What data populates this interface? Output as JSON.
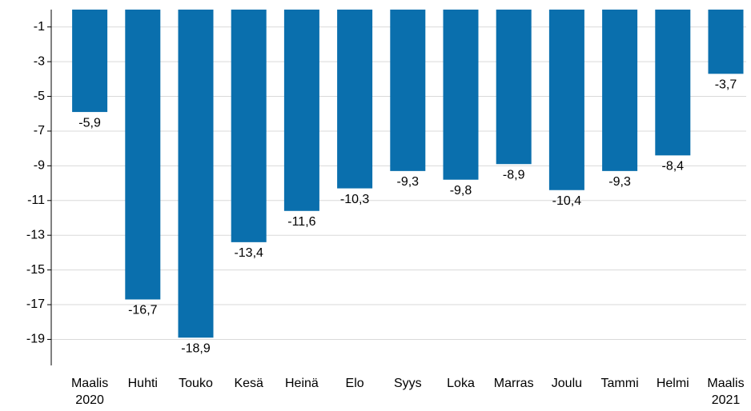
{
  "chart_data": {
    "type": "bar",
    "categories": [
      "Maalis 2020",
      "Huhti",
      "Touko",
      "Kesä",
      "Heinä",
      "Elo",
      "Syys",
      "Loka",
      "Marras",
      "Joulu",
      "Tammi",
      "Helmi",
      "Maalis 2021"
    ],
    "values": [
      -5.9,
      -16.7,
      -18.9,
      -13.4,
      -11.6,
      -10.3,
      -9.3,
      -9.8,
      -8.9,
      -10.4,
      -9.3,
      -8.4,
      -3.7
    ],
    "value_labels": [
      "-5,9",
      "-16,7",
      "-18,9",
      "-13,4",
      "-11,6",
      "-10,3",
      "-9,3",
      "-9,8",
      "-8,9",
      "-10,4",
      "-9,3",
      "-8,4",
      "-3,7"
    ],
    "color": "#0a6fad",
    "ylim": [
      -20.5,
      0
    ],
    "yticks": [
      -1,
      -3,
      -5,
      -7,
      -9,
      -11,
      -13,
      -15,
      -17,
      -19
    ],
    "grid": true
  }
}
